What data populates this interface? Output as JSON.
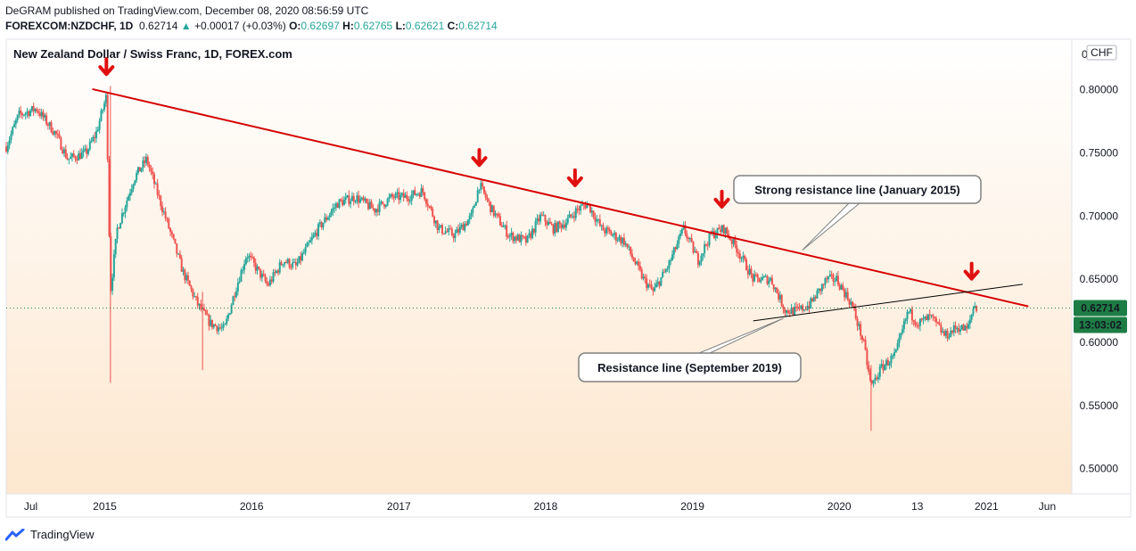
{
  "header": {
    "published": "DeGRAM published on TradingView.com, December 08, 2020 08:56:59 UTC",
    "symbol": "FOREXCOM:NZDCHF, 1D",
    "last": "0.62714",
    "change": "+0.00017 (+0.03%)",
    "o_key": "O:",
    "o_val": "0.62697",
    "h_key": "H:",
    "h_val": "0.62765",
    "l_key": "L:",
    "l_val": "0.62621",
    "c_key": "C:",
    "c_val": "0.62714"
  },
  "chart_title": "New Zealand Dollar / Swiss Franc, 1D, FOREX.com",
  "footer": {
    "brand": "TradingView"
  },
  "colors": {
    "up": "#26a69a",
    "down": "#ef5350",
    "trendline": "#d50000",
    "arrow": "#e01010",
    "price_badge": "#1e7d45",
    "bg_top": "#ffffff",
    "bg_bottom": "#fde7cf"
  },
  "chart_data": {
    "type": "candlestick",
    "currency_label": "CHF",
    "y_axis_top_label": "0",
    "ylim": [
      0.48,
      0.84
    ],
    "y_ticks": [
      "0.80000",
      "0.75000",
      "0.70000",
      "0.65000",
      "0.60000",
      "0.55000",
      "0.50000"
    ],
    "y_tick_values": [
      0.8,
      0.75,
      0.7,
      0.65,
      0.6,
      0.55,
      0.5
    ],
    "x_ticks": [
      "Jul",
      "2015",
      "2016",
      "2017",
      "2018",
      "2019",
      "2020",
      "13",
      "2021",
      "Jun"
    ],
    "x_tick_dates": [
      "2014-07-01",
      "2015-01-01",
      "2016-01-01",
      "2017-01-01",
      "2018-01-01",
      "2019-01-01",
      "2020-01-01",
      "2020-07-13",
      "2021-01-01",
      "2021-06-01"
    ],
    "xlim": [
      "2014-05-01",
      "2021-08-01"
    ],
    "last_price": "0.62714",
    "last_price_value": 0.62714,
    "countdown": "13:03:02",
    "series": [
      {
        "points": [
          [
            "2014-05-01",
            0.755
          ],
          [
            "2014-06-01",
            0.78
          ],
          [
            "2014-07-15",
            0.785
          ],
          [
            "2014-09-01",
            0.765
          ],
          [
            "2014-10-01",
            0.745
          ],
          [
            "2014-11-15",
            0.75
          ],
          [
            "2014-12-10",
            0.765
          ],
          [
            "2015-01-05",
            0.795
          ],
          [
            "2015-01-15",
            0.64
          ],
          [
            "2015-02-01",
            0.69
          ],
          [
            "2015-03-15",
            0.73
          ],
          [
            "2015-04-15",
            0.745
          ],
          [
            "2015-05-15",
            0.715
          ],
          [
            "2015-06-15",
            0.685
          ],
          [
            "2015-07-15",
            0.655
          ],
          [
            "2015-08-20",
            0.63
          ],
          [
            "2015-09-20",
            0.615
          ],
          [
            "2015-10-25",
            0.61
          ],
          [
            "2015-11-20",
            0.64
          ],
          [
            "2015-12-20",
            0.67
          ],
          [
            "2016-02-10",
            0.645
          ],
          [
            "2016-03-20",
            0.665
          ],
          [
            "2016-04-20",
            0.66
          ],
          [
            "2016-06-15",
            0.69
          ],
          [
            "2016-08-01",
            0.71
          ],
          [
            "2016-09-15",
            0.715
          ],
          [
            "2016-11-01",
            0.705
          ],
          [
            "2016-12-15",
            0.715
          ],
          [
            "2017-01-20",
            0.715
          ],
          [
            "2017-03-01",
            0.72
          ],
          [
            "2017-04-10",
            0.69
          ],
          [
            "2017-05-20",
            0.685
          ],
          [
            "2017-07-01",
            0.7
          ],
          [
            "2017-07-20",
            0.725
          ],
          [
            "2017-08-20",
            0.705
          ],
          [
            "2017-10-01",
            0.685
          ],
          [
            "2017-11-15",
            0.68
          ],
          [
            "2017-12-20",
            0.7
          ],
          [
            "2018-01-20",
            0.69
          ],
          [
            "2018-02-20",
            0.695
          ],
          [
            "2018-03-20",
            0.705
          ],
          [
            "2018-04-15",
            0.71
          ],
          [
            "2018-05-20",
            0.69
          ],
          [
            "2018-07-15",
            0.68
          ],
          [
            "2018-09-01",
            0.65
          ],
          [
            "2018-09-25",
            0.64
          ],
          [
            "2018-11-01",
            0.66
          ],
          [
            "2018-12-10",
            0.69
          ],
          [
            "2019-01-15",
            0.665
          ],
          [
            "2019-02-15",
            0.685
          ],
          [
            "2019-03-20",
            0.69
          ],
          [
            "2019-04-20",
            0.675
          ],
          [
            "2019-06-01",
            0.65
          ],
          [
            "2019-07-15",
            0.65
          ],
          [
            "2019-08-20",
            0.625
          ],
          [
            "2019-09-20",
            0.625
          ],
          [
            "2019-10-20",
            0.63
          ],
          [
            "2019-12-01",
            0.65
          ],
          [
            "2019-12-25",
            0.65
          ],
          [
            "2020-02-01",
            0.63
          ],
          [
            "2020-03-01",
            0.6
          ],
          [
            "2020-03-20",
            0.565
          ],
          [
            "2020-04-15",
            0.58
          ],
          [
            "2020-05-20",
            0.59
          ],
          [
            "2020-06-20",
            0.625
          ],
          [
            "2020-07-15",
            0.615
          ],
          [
            "2020-08-15",
            0.62
          ],
          [
            "2020-09-20",
            0.605
          ],
          [
            "2020-10-20",
            0.612
          ],
          [
            "2020-11-15",
            0.61
          ],
          [
            "2020-12-01",
            0.63
          ],
          [
            "2020-12-08",
            0.627
          ]
        ]
      }
    ],
    "trendlines": [
      {
        "name": "Strong resistance line (January 2015)",
        "from": [
          "2014-12-01",
          0.8005
        ],
        "to": [
          "2021-04-15",
          0.6285
        ]
      },
      {
        "name": "Resistance line (September 2019)",
        "from": [
          "2019-06-01",
          0.617
        ],
        "to": [
          "2021-04-01",
          0.646
        ]
      }
    ],
    "annotations": [
      {
        "text": "Strong resistance line (January 2015)",
        "target": [
          "2019-10-01",
          0.673
        ]
      },
      {
        "text": "Resistance line (September 2019)",
        "target": [
          "2019-08-15",
          0.619
        ]
      }
    ],
    "arrows": [
      [
        "2015-01-05",
        0.818
      ],
      [
        "2017-07-20",
        0.746
      ],
      [
        "2018-03-15",
        0.73
      ],
      [
        "2019-03-15",
        0.713
      ],
      [
        "2020-11-25",
        0.656
      ]
    ]
  }
}
